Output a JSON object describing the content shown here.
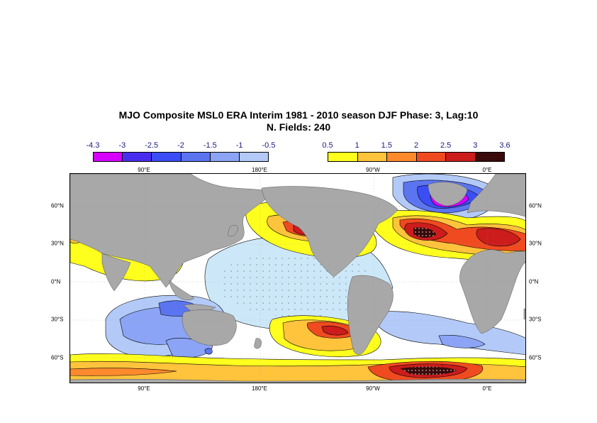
{
  "title_line1": "MJO Composite MSL0 ERA Interim 1981 - 2010 season DJF Phase: 3, Lag:10",
  "title_line2": "N. Fields: 240",
  "colorbar_negative": {
    "labels": [
      "-4.3",
      "-3",
      "-2.5",
      "-2",
      "-1.5",
      "-1",
      "-0.5"
    ],
    "colors": [
      "#d600ff",
      "#4a2ef0",
      "#3b4df5",
      "#5b74f0",
      "#8ba4f5",
      "#b3caf8"
    ]
  },
  "colorbar_positive": {
    "labels": [
      "0.5",
      "1",
      "1.5",
      "2",
      "2.5",
      "3",
      "3.6"
    ],
    "colors": [
      "#ffff1e",
      "#ffc33c",
      "#ff8a2e",
      "#f04a20",
      "#cc1c1c",
      "#3a0a0a"
    ]
  },
  "axis_ticks": {
    "top": [
      "90°E",
      "180°E",
      "90°W",
      "0°E"
    ],
    "bottom": [
      "90°E",
      "180°E",
      "90°W",
      "0°E"
    ],
    "left": [
      "60°N",
      "30°N",
      "0°N",
      "30°S",
      "60°S"
    ],
    "right": [
      "60°N",
      "30°N",
      "0°N",
      "30°S",
      "60°S"
    ]
  },
  "colors": {
    "land": "#a8a8a8",
    "ocean_background": "#ffffff",
    "light_blue_region": "#cce8f8"
  }
}
